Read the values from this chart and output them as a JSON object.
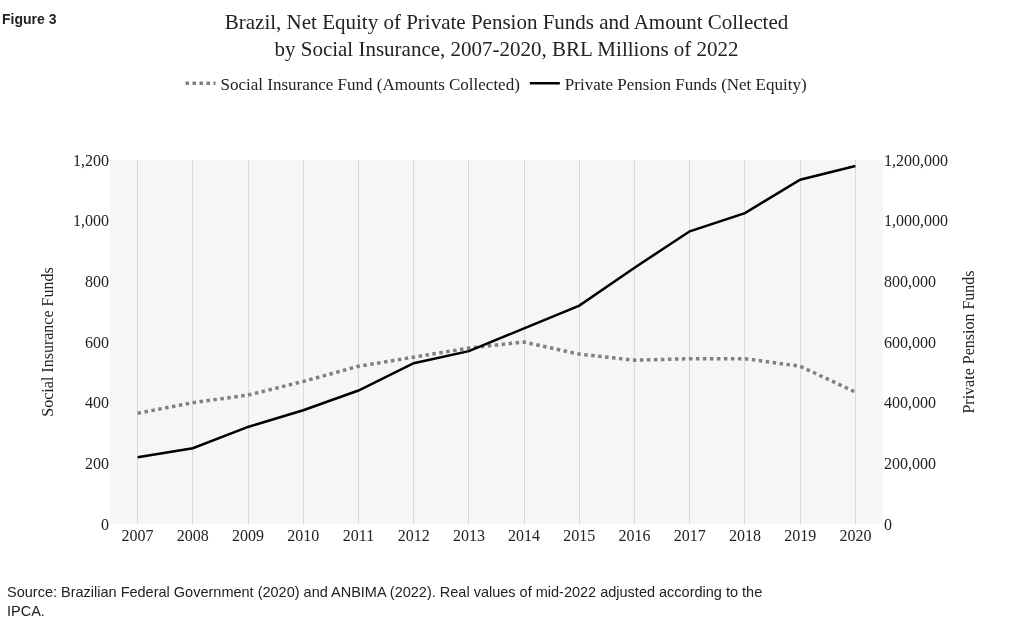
{
  "chart_data": {
    "type": "line",
    "title": "Brazil, Net Equity of Private Pension Funds and Amount Collected by Social Insurance, 2007-2020, BRL Millions of 2022",
    "ylabel": "Social Insurance Funds",
    "y2label": "Private Pension Funds",
    "categories": [
      "2007",
      "2008",
      "2009",
      "2010",
      "2011",
      "2012",
      "2013",
      "2014",
      "2015",
      "2016",
      "2017",
      "2018",
      "2019",
      "2020"
    ],
    "series": [
      {
        "name": "Social Insurance Fund (Amounts Collected)",
        "color": "#808080",
        "line_style": "dotted",
        "values": [
          365,
          400,
          425,
          470,
          520,
          550,
          580,
          600,
          560,
          540,
          545,
          545,
          520,
          435
        ]
      },
      {
        "name": "Private Pension Funds (Net Equity)",
        "color": "#000000",
        "line_style": "solid",
        "axis": "y2",
        "values": [
          220000,
          250000,
          320000,
          375000,
          440000,
          530000,
          570000,
          645000,
          720000,
          845000,
          965000,
          1025000,
          1135000,
          1180000
        ]
      }
    ],
    "ylim": [
      0,
      1200
    ],
    "yticks": [
      0,
      {
        "value": 200,
        "label": "200"
      },
      {
        "value": 400,
        "label": "400"
      },
      {
        "value": 600,
        "label": "600"
      },
      {
        "value": 800,
        "label": "800"
      },
      {
        "value": 1000,
        "label": "1,000"
      },
      {
        "value": 1200,
        "label": "1,200"
      }
    ],
    "y2lim": [
      0,
      1200000
    ],
    "y2ticks": [
      0,
      {
        "value": 200000,
        "label": "200,000"
      },
      {
        "value": 400000,
        "label": "400,000"
      },
      {
        "value": 600000,
        "label": "600,000"
      },
      {
        "value": 800000,
        "label": "800,000"
      },
      {
        "value": 1000000,
        "label": "1,000,000"
      },
      {
        "value": 1200000,
        "label": "1,200,000"
      }
    ],
    "grid": "x",
    "legend": "top",
    "marker": "none",
    "annotations": [
      "Figure 3",
      "Source: Brazilian Federal Government (2020) and ANBIMA (2022). Real values of mid-2022 adjusted according to the IPCA."
    ]
  }
}
